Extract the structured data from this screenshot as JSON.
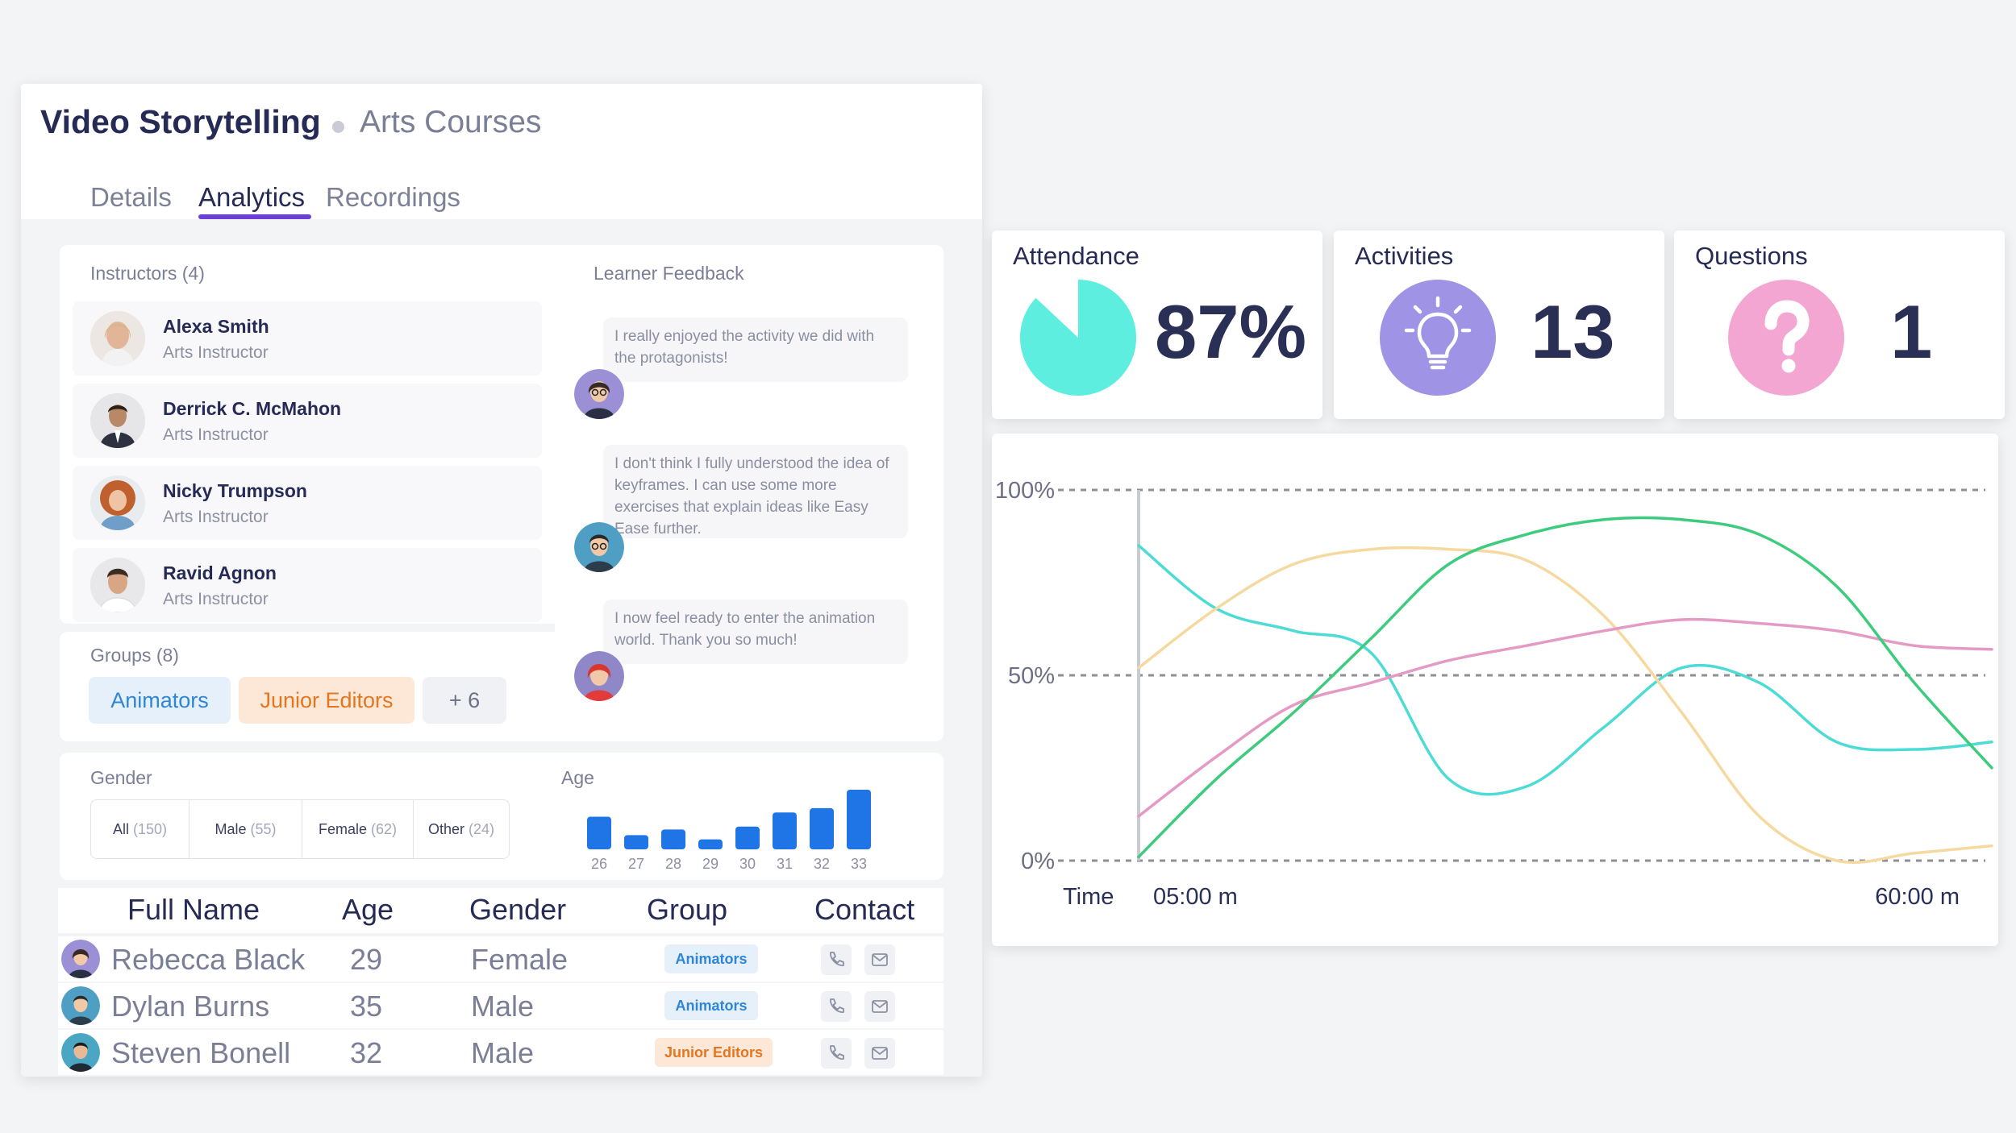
{
  "course": {
    "title": "Video Storytelling",
    "category": "Arts Courses",
    "tabs": [
      "Details",
      "Analytics",
      "Recordings"
    ]
  },
  "instructors": {
    "label": "Instructors (4)",
    "items": [
      {
        "name": "Alexa Smith",
        "role": "Arts Instructor"
      },
      {
        "name": "Derrick C. McMahon",
        "role": "Arts Instructor"
      },
      {
        "name": "Nicky Trumpson",
        "role": "Arts Instructor"
      },
      {
        "name": "Ravid Agnon",
        "role": "Arts Instructor"
      }
    ]
  },
  "groups": {
    "label": "Groups (8)",
    "items": [
      "Animators",
      "Junior Editors"
    ],
    "more": "+ 6"
  },
  "feedback": {
    "label": "Learner Feedback",
    "items": [
      "I really enjoyed the activity we did with the protagonists!",
      "I don't think I fully understood the idea of keyframes. I can use some more exercises that explain ideas like Easy Ease further.",
      "I now feel ready to enter the animation world. Thank you so much!"
    ]
  },
  "gender": {
    "label": "Gender",
    "segments": [
      {
        "label": "All",
        "count": "(150)"
      },
      {
        "label": "Male",
        "count": "(55)"
      },
      {
        "label": "Female",
        "count": "(62)"
      },
      {
        "label": "Other",
        "count": "(24)"
      }
    ]
  },
  "age": {
    "label": "Age",
    "chart_data": {
      "type": "bar",
      "categories": [
        "26",
        "27",
        "28",
        "29",
        "30",
        "31",
        "32",
        "33"
      ],
      "values": [
        23,
        10,
        14,
        7,
        16,
        26,
        29,
        42
      ],
      "color": "#1f74e6"
    }
  },
  "table": {
    "headers": [
      "Full Name",
      "Age",
      "Gender",
      "Group",
      "Contact"
    ],
    "rows": [
      {
        "name": "Rebecca Black",
        "age": "29",
        "gender": "Female",
        "group": "Animators"
      },
      {
        "name": "Dylan Burns",
        "age": "35",
        "gender": "Male",
        "group": "Animators"
      },
      {
        "name": "Steven Bonell",
        "age": "32",
        "gender": "Male",
        "group": "Junior Editors"
      }
    ]
  },
  "stats": {
    "attendance": {
      "label": "Attendance",
      "value": "87%",
      "fraction": 0.87,
      "color": "#5eeee0"
    },
    "activities": {
      "label": "Activities",
      "value": "13",
      "icon": "lightbulb-icon",
      "color": "#9e93e5"
    },
    "questions": {
      "label": "Questions",
      "value": "1",
      "icon": "question-icon",
      "color": "#f4a6d3"
    }
  },
  "line_chart": {
    "chart_data": {
      "type": "line",
      "y_ticks": [
        "100%",
        "50%",
        "0%"
      ],
      "ylim": [
        0,
        100
      ],
      "xlabel": "Time",
      "x_ticks": [
        "05:00 m",
        "60:00 m"
      ],
      "x": [
        5,
        10,
        15,
        20,
        25,
        30,
        35,
        40,
        45,
        50,
        55,
        60
      ],
      "series": [
        {
          "color": "#4ddbd5",
          "values": [
            85,
            68,
            62,
            56,
            22,
            20,
            36,
            52,
            48,
            32,
            30,
            32
          ]
        },
        {
          "color": "#f5d9a0",
          "values": [
            52,
            68,
            80,
            84,
            84,
            81,
            66,
            40,
            12,
            0,
            2,
            4
          ]
        },
        {
          "color": "#e49ac4",
          "values": [
            12,
            28,
            42,
            48,
            54,
            58,
            62,
            65,
            64,
            62,
            58,
            57
          ]
        },
        {
          "color": "#3dcc7e",
          "values": [
            1,
            22,
            40,
            60,
            80,
            88,
            92,
            92,
            88,
            74,
            48,
            25
          ]
        }
      ]
    }
  }
}
